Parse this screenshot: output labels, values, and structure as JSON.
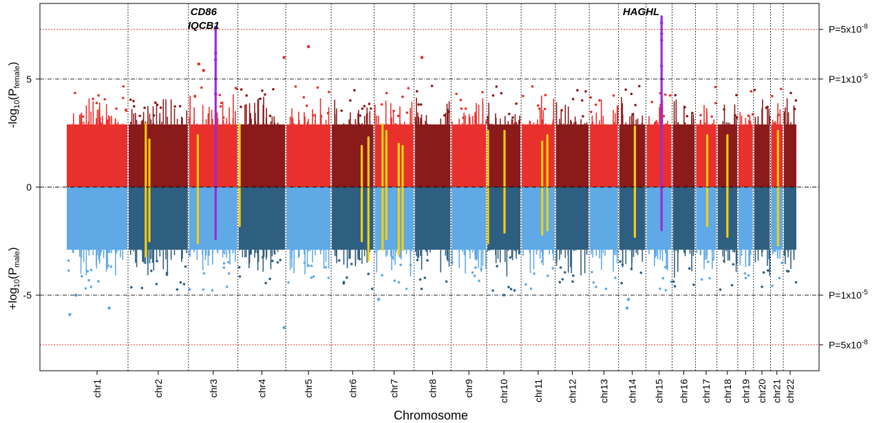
{
  "chart_data": {
    "type": "scatter",
    "xlabel": "Chromosome",
    "ylabel_top": {
      "prefix": "-log",
      "sub1": "10",
      "mid": "(P",
      "sub2": "female",
      "suffix": ")"
    },
    "ylabel_bottom": {
      "prefix": "+log",
      "sub1": "10",
      "mid": "(P",
      "sub2": "male",
      "suffix": ")"
    },
    "ylim": [
      -8.5,
      8.5
    ],
    "yticks": [
      {
        "value": 5,
        "label": "5"
      },
      {
        "value": 0,
        "label": "0"
      },
      {
        "value": -5,
        "label": "-5"
      }
    ],
    "thresholds": [
      {
        "value": 7.3,
        "style": "red-dotted",
        "label": "P=5x10",
        "exp": "-8"
      },
      {
        "value": 5,
        "style": "black-dashdot",
        "label": "P=1x10",
        "exp": "-5"
      },
      {
        "value": 0,
        "style": "black-dashdot",
        "label": "",
        "exp": ""
      },
      {
        "value": -5,
        "style": "black-dashdot",
        "label": "P=1x10",
        "exp": "-5"
      },
      {
        "value": -7.3,
        "style": "red-dotted",
        "label": "P=5x10",
        "exp": "-8"
      }
    ],
    "chromosomes": [
      {
        "name": "chr1",
        "size": 249
      },
      {
        "name": "chr2",
        "size": 243
      },
      {
        "name": "chr3",
        "size": 198
      },
      {
        "name": "chr4",
        "size": 191
      },
      {
        "name": "chr5",
        "size": 181
      },
      {
        "name": "chr6",
        "size": 171
      },
      {
        "name": "chr7",
        "size": 159
      },
      {
        "name": "chr8",
        "size": 146
      },
      {
        "name": "chr9",
        "size": 141
      },
      {
        "name": "chr10",
        "size": 136
      },
      {
        "name": "chr11",
        "size": 135
      },
      {
        "name": "chr12",
        "size": 134
      },
      {
        "name": "chr13",
        "size": 115
      },
      {
        "name": "chr14",
        "size": 107
      },
      {
        "name": "chr15",
        "size": 102
      },
      {
        "name": "chr16",
        "size": 90
      },
      {
        "name": "chr17",
        "size": 83
      },
      {
        "name": "chr18",
        "size": 80
      },
      {
        "name": "chr19",
        "size": 59
      },
      {
        "name": "chr20",
        "size": 64
      },
      {
        "name": "chr21",
        "size": 47
      },
      {
        "name": "chr22",
        "size": 51
      }
    ],
    "colors": {
      "female_light": "#e8302d",
      "female_dark": "#8b1a1a",
      "male_light": "#5ea9e6",
      "male_dark": "#2f5f80",
      "highlight_yellow": "#f5cf10",
      "highlight_purple": "#9b2ad6",
      "threshold_red": "#e03030",
      "axis": "#000000"
    },
    "highlight_loci": [
      {
        "chr": "chr2",
        "pos": 0.29,
        "color": "yellow",
        "top": 2.9,
        "bottom": -3.2
      },
      {
        "chr": "chr2",
        "pos": 0.35,
        "color": "yellow",
        "top": 2.2,
        "bottom": -2.5
      },
      {
        "chr": "chr3",
        "pos": 0.18,
        "color": "yellow",
        "top": 2.4,
        "bottom": -2.6
      },
      {
        "chr": "chr3",
        "pos": 0.55,
        "color": "purple",
        "top": 7.4,
        "bottom": -2.4
      },
      {
        "chr": "chr4",
        "pos": 0.02,
        "color": "yellow",
        "top": 2.9,
        "bottom": -1.8
      },
      {
        "chr": "chr6",
        "pos": 0.72,
        "color": "yellow",
        "top": 1.9,
        "bottom": -2.5
      },
      {
        "chr": "chr6",
        "pos": 0.88,
        "color": "yellow",
        "top": 2.3,
        "bottom": -3.4
      },
      {
        "chr": "chr7",
        "pos": 0.2,
        "color": "yellow",
        "top": 2.9,
        "bottom": -2.9
      },
      {
        "chr": "chr7",
        "pos": 0.3,
        "color": "yellow",
        "top": 2.6,
        "bottom": -2.4
      },
      {
        "chr": "chr7",
        "pos": 0.62,
        "color": "yellow",
        "top": 2.0,
        "bottom": -3.1
      },
      {
        "chr": "chr7",
        "pos": 0.72,
        "color": "yellow",
        "top": 1.9,
        "bottom": -2.9
      },
      {
        "chr": "chr10",
        "pos": 0.02,
        "color": "yellow",
        "top": 2.6,
        "bottom": -2.6
      },
      {
        "chr": "chr10",
        "pos": 0.52,
        "color": "yellow",
        "top": 2.6,
        "bottom": -2.1
      },
      {
        "chr": "chr11",
        "pos": 0.62,
        "color": "yellow",
        "top": 2.1,
        "bottom": -2.2
      },
      {
        "chr": "chr11",
        "pos": 0.78,
        "color": "yellow",
        "top": 2.4,
        "bottom": -2.0
      },
      {
        "chr": "chr14",
        "pos": 0.6,
        "color": "yellow",
        "top": 2.8,
        "bottom": -2.3
      },
      {
        "chr": "chr15",
        "pos": 0.6,
        "color": "purple",
        "top": 7.9,
        "bottom": -2.0
      },
      {
        "chr": "chr17",
        "pos": 0.55,
        "color": "yellow",
        "top": 2.4,
        "bottom": -1.8
      },
      {
        "chr": "chr18",
        "pos": 0.5,
        "color": "yellow",
        "top": 2.4,
        "bottom": -2.3
      },
      {
        "chr": "chr21",
        "pos": 0.6,
        "color": "yellow",
        "top": 2.6,
        "bottom": -2.7
      }
    ],
    "outliers": [
      {
        "chr": "chr3",
        "pos": 0.55,
        "y": 7.4,
        "color": "purple"
      },
      {
        "chr": "chr3",
        "pos": 0.55,
        "y": 6.2,
        "color": "purple"
      },
      {
        "chr": "chr3",
        "pos": 0.55,
        "y": 5.9,
        "color": "purple"
      },
      {
        "chr": "chr3",
        "pos": 0.55,
        "y": 4.3,
        "color": "purple"
      },
      {
        "chr": "chr15",
        "pos": 0.6,
        "y": 7.6,
        "color": "purple"
      },
      {
        "chr": "chr15",
        "pos": 0.6,
        "y": 7.1,
        "color": "purple"
      },
      {
        "chr": "chr15",
        "pos": 0.6,
        "y": 6.8,
        "color": "purple"
      },
      {
        "chr": "chr15",
        "pos": 0.6,
        "y": 5.6,
        "color": "purple"
      },
      {
        "chr": "chr15",
        "pos": 0.6,
        "y": 5.0,
        "color": "purple"
      },
      {
        "chr": "chr3",
        "pos": 0.2,
        "y": 5.7,
        "color": "female"
      },
      {
        "chr": "chr3",
        "pos": 0.3,
        "y": 5.4,
        "color": "female"
      },
      {
        "chr": "chr4",
        "pos": 0.98,
        "y": 6.0,
        "color": "female"
      },
      {
        "chr": "chr5",
        "pos": 0.5,
        "y": 6.5,
        "color": "female"
      },
      {
        "chr": "chr8",
        "pos": 0.2,
        "y": 6.0,
        "color": "female"
      },
      {
        "chr": "chr1",
        "pos": 0.05,
        "y": -5.9,
        "color": "male"
      },
      {
        "chr": "chr1",
        "pos": 0.15,
        "y": -5.0,
        "color": "male"
      },
      {
        "chr": "chr1",
        "pos": 0.7,
        "y": -5.6,
        "color": "male"
      },
      {
        "chr": "chr4",
        "pos": 0.98,
        "y": -6.5,
        "color": "male"
      },
      {
        "chr": "chr7",
        "pos": 0.1,
        "y": -5.2,
        "color": "male"
      },
      {
        "chr": "chr14",
        "pos": 0.3,
        "y": -5.6,
        "color": "male"
      },
      {
        "chr": "chr14",
        "pos": 0.35,
        "y": -5.2,
        "color": "male"
      },
      {
        "chr": "chr10",
        "pos": 0.5,
        "y": -5.0,
        "color": "male"
      }
    ],
    "annotations": [
      {
        "lines": [
          "CD86",
          "IQCB1"
        ],
        "chr": "chr3"
      },
      {
        "lines": [
          "HAGHL"
        ],
        "chr": "chr15"
      }
    ]
  }
}
